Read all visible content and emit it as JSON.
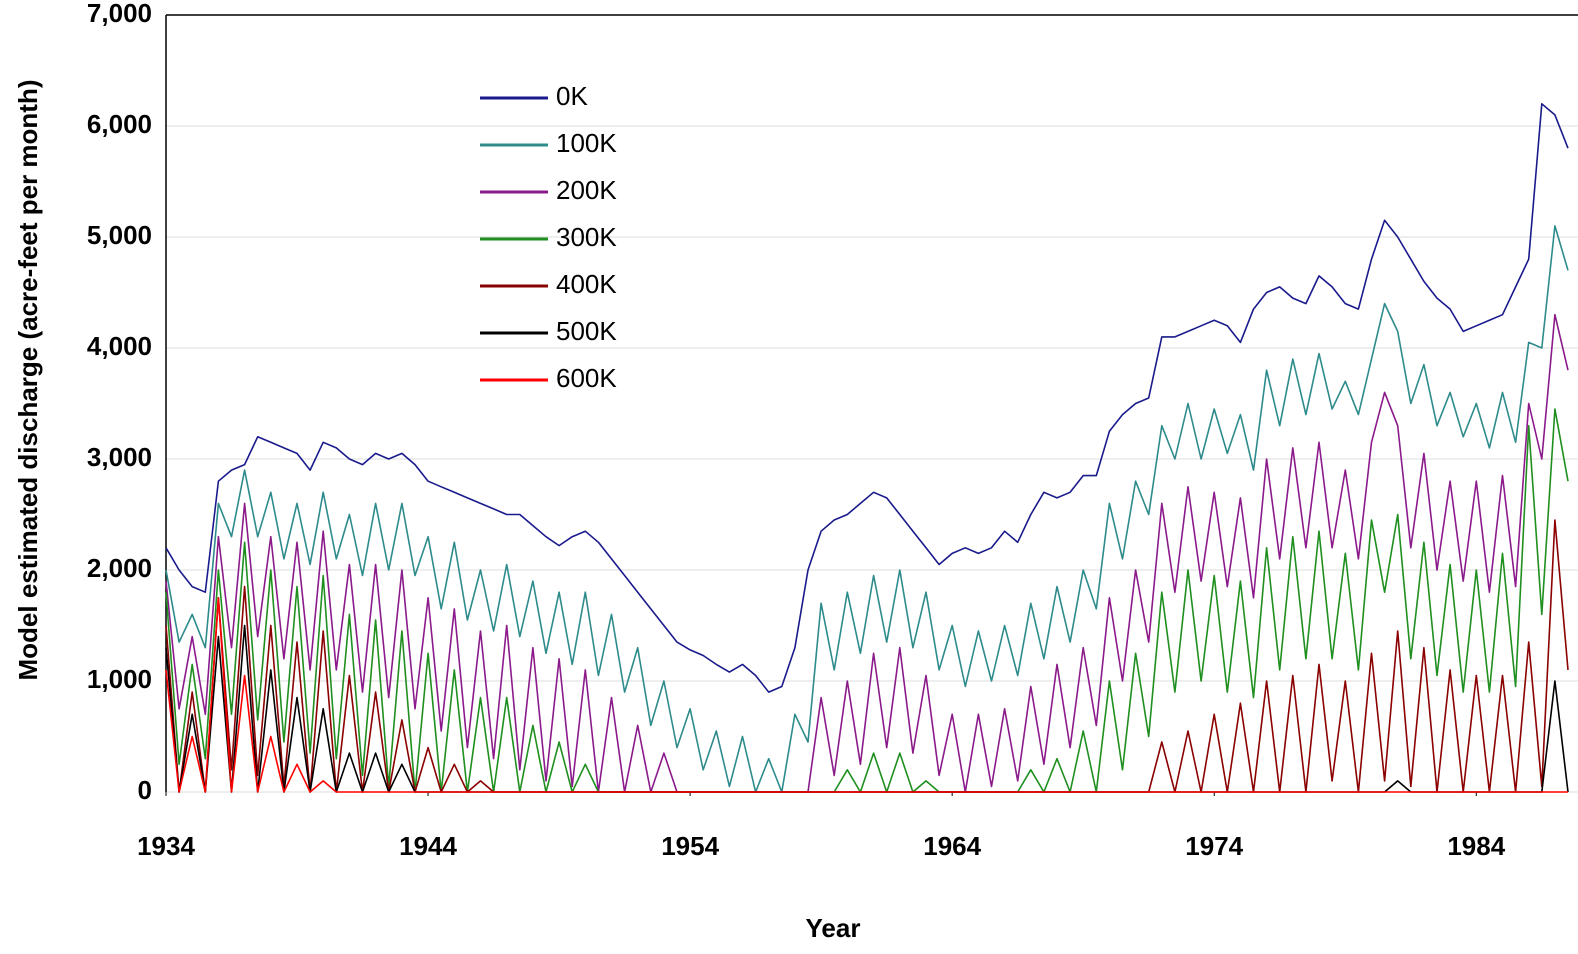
{
  "chart_data": {
    "type": "line",
    "xlabel": "Year",
    "ylabel": "Model estimated discharge (acre-feet per month)",
    "x": [
      1934,
      1934.5,
      1935,
      1935.5,
      1936,
      1936.5,
      1937,
      1937.5,
      1938,
      1938.5,
      1939,
      1939.5,
      1940,
      1940.5,
      1941,
      1941.5,
      1942,
      1942.5,
      1943,
      1943.5,
      1944,
      1944.5,
      1945,
      1945.5,
      1946,
      1946.5,
      1947,
      1947.5,
      1948,
      1948.5,
      1949,
      1949.5,
      1950,
      1950.5,
      1951,
      1951.5,
      1952,
      1952.5,
      1953,
      1953.5,
      1954,
      1954.5,
      1955,
      1955.5,
      1956,
      1956.5,
      1957,
      1957.5,
      1958,
      1958.5,
      1959,
      1959.5,
      1960,
      1960.5,
      1961,
      1961.5,
      1962,
      1962.5,
      1963,
      1963.5,
      1964,
      1964.5,
      1965,
      1965.5,
      1966,
      1966.5,
      1967,
      1967.5,
      1968,
      1968.5,
      1969,
      1969.5,
      1970,
      1970.5,
      1971,
      1971.5,
      1972,
      1972.5,
      1973,
      1973.5,
      1974,
      1974.5,
      1975,
      1975.5,
      1976,
      1976.5,
      1977,
      1977.5,
      1978,
      1978.5,
      1979,
      1979.5,
      1980,
      1980.5,
      1981,
      1981.5,
      1982,
      1982.5,
      1983,
      1983.5,
      1984,
      1984.5,
      1985,
      1985.5,
      1986,
      1986.5,
      1987,
      1987.5
    ],
    "series": [
      {
        "name": "0K",
        "color": "#1a1a8c",
        "values": [
          2200,
          2000,
          1850,
          1800,
          2800,
          2900,
          2950,
          3200,
          3150,
          3100,
          3050,
          2900,
          3150,
          3100,
          3000,
          2950,
          3050,
          3000,
          3050,
          2950,
          2800,
          2750,
          2700,
          2650,
          2600,
          2550,
          2500,
          2500,
          2400,
          2300,
          2220,
          2300,
          2350,
          2250,
          2100,
          1950,
          1800,
          1650,
          1500,
          1350,
          1280,
          1230,
          1150,
          1080,
          1150,
          1050,
          900,
          950,
          1300,
          2000,
          2350,
          2450,
          2500,
          2600,
          2700,
          2650,
          2500,
          2350,
          2200,
          2050,
          2150,
          2200,
          2150,
          2200,
          2350,
          2250,
          2500,
          2700,
          2650,
          2700,
          2850,
          2850,
          3250,
          3400,
          3500,
          3550,
          4100,
          4100,
          4150,
          4200,
          4250,
          4200,
          4050,
          4350,
          4500,
          4550,
          4450,
          4400,
          4650,
          4550,
          4400,
          4350,
          4800,
          5150,
          5000,
          4800,
          4600,
          4450,
          4350,
          4150,
          4200,
          4250,
          4300,
          4550,
          4800,
          6200,
          6100,
          5800
        ]
      },
      {
        "name": "100K",
        "color": "#2e8b8b",
        "values": [
          2000,
          1350,
          1600,
          1300,
          2600,
          2300,
          2900,
          2300,
          2700,
          2100,
          2600,
          2050,
          2700,
          2100,
          2500,
          1950,
          2600,
          2000,
          2600,
          1950,
          2300,
          1650,
          2250,
          1550,
          2000,
          1450,
          2050,
          1400,
          1900,
          1250,
          1800,
          1150,
          1800,
          1050,
          1600,
          900,
          1300,
          600,
          1000,
          400,
          750,
          200,
          550,
          50,
          500,
          0,
          300,
          0,
          700,
          450,
          1700,
          1100,
          1800,
          1250,
          1950,
          1350,
          2000,
          1300,
          1800,
          1100,
          1500,
          950,
          1450,
          1000,
          1500,
          1050,
          1700,
          1200,
          1850,
          1350,
          2000,
          1650,
          2600,
          2100,
          2800,
          2500,
          3300,
          3000,
          3500,
          3000,
          3450,
          3050,
          3400,
          2900,
          3800,
          3300,
          3900,
          3400,
          3950,
          3450,
          3700,
          3400,
          3900,
          4400,
          4150,
          3500,
          3850,
          3300,
          3600,
          3200,
          3500,
          3100,
          3600,
          3150,
          4050,
          4000,
          5100,
          4700
        ]
      },
      {
        "name": "200K",
        "color": "#8b1a8b",
        "values": [
          1900,
          750,
          1400,
          700,
          2300,
          1300,
          2600,
          1400,
          2300,
          1200,
          2250,
          1100,
          2350,
          1100,
          2050,
          900,
          2050,
          850,
          2000,
          750,
          1750,
          550,
          1650,
          400,
          1450,
          300,
          1500,
          200,
          1300,
          100,
          1200,
          50,
          1100,
          0,
          850,
          0,
          600,
          0,
          350,
          0,
          0,
          0,
          0,
          0,
          0,
          0,
          0,
          0,
          0,
          0,
          850,
          150,
          1000,
          250,
          1250,
          400,
          1300,
          350,
          1050,
          150,
          700,
          0,
          700,
          50,
          750,
          100,
          950,
          250,
          1150,
          400,
          1300,
          600,
          1750,
          1000,
          2000,
          1350,
          2600,
          1800,
          2750,
          1900,
          2700,
          1850,
          2650,
          1750,
          3000,
          2100,
          3100,
          2200,
          3150,
          2200,
          2900,
          2100,
          3150,
          3600,
          3300,
          2200,
          3050,
          2000,
          2800,
          1900,
          2800,
          1800,
          2850,
          1850,
          3500,
          3000,
          4300,
          3800
        ]
      },
      {
        "name": "300K",
        "color": "#1f8f1f",
        "values": [
          1800,
          250,
          1150,
          300,
          2000,
          700,
          2250,
          650,
          2000,
          450,
          1850,
          350,
          1950,
          300,
          1600,
          150,
          1550,
          50,
          1450,
          0,
          1250,
          0,
          1100,
          0,
          850,
          0,
          850,
          0,
          600,
          0,
          450,
          0,
          250,
          0,
          0,
          0,
          0,
          0,
          0,
          0,
          0,
          0,
          0,
          0,
          0,
          0,
          0,
          0,
          0,
          0,
          0,
          0,
          200,
          0,
          350,
          0,
          350,
          0,
          100,
          0,
          0,
          0,
          0,
          0,
          0,
          0,
          200,
          0,
          300,
          0,
          550,
          0,
          1000,
          200,
          1250,
          500,
          1800,
          900,
          2000,
          1000,
          1950,
          900,
          1900,
          850,
          2200,
          1100,
          2300,
          1200,
          2350,
          1200,
          2150,
          1100,
          2450,
          1800,
          2500,
          1200,
          2250,
          1050,
          2050,
          900,
          2000,
          900,
          2150,
          950,
          3300,
          1600,
          3450,
          2800
        ]
      },
      {
        "name": "400K",
        "color": "#8b0000",
        "values": [
          1500,
          0,
          900,
          0,
          1750,
          200,
          1850,
          150,
          1500,
          50,
          1350,
          0,
          1450,
          0,
          1050,
          0,
          900,
          0,
          650,
          0,
          400,
          0,
          250,
          0,
          100,
          0,
          0,
          0,
          0,
          0,
          0,
          0,
          0,
          0,
          0,
          0,
          0,
          0,
          0,
          0,
          0,
          0,
          0,
          0,
          0,
          0,
          0,
          0,
          0,
          0,
          0,
          0,
          0,
          0,
          0,
          0,
          0,
          0,
          0,
          0,
          0,
          0,
          0,
          0,
          0,
          0,
          0,
          0,
          0,
          0,
          0,
          0,
          0,
          0,
          0,
          0,
          450,
          0,
          550,
          0,
          700,
          0,
          800,
          0,
          1000,
          0,
          1050,
          0,
          1150,
          100,
          1000,
          0,
          1250,
          100,
          1450,
          50,
          1300,
          0,
          1100,
          0,
          1050,
          0,
          1050,
          0,
          1350,
          50,
          2450,
          1100
        ]
      },
      {
        "name": "500K",
        "color": "#000000",
        "values": [
          1300,
          0,
          700,
          0,
          1400,
          0,
          1500,
          0,
          1100,
          0,
          850,
          0,
          750,
          0,
          350,
          0,
          350,
          0,
          250,
          0,
          0,
          0,
          0,
          0,
          0,
          0,
          0,
          0,
          0,
          0,
          0,
          0,
          0,
          0,
          0,
          0,
          0,
          0,
          0,
          0,
          0,
          0,
          0,
          0,
          0,
          0,
          0,
          0,
          0,
          0,
          0,
          0,
          0,
          0,
          0,
          0,
          0,
          0,
          0,
          0,
          0,
          0,
          0,
          0,
          0,
          0,
          0,
          0,
          0,
          0,
          0,
          0,
          0,
          0,
          0,
          0,
          0,
          0,
          0,
          0,
          0,
          0,
          0,
          0,
          0,
          0,
          0,
          0,
          0,
          0,
          0,
          0,
          0,
          0,
          100,
          0,
          0,
          0,
          0,
          0,
          0,
          0,
          0,
          0,
          0,
          0,
          1000,
          0
        ]
      },
      {
        "name": "600K",
        "color": "#ff0000",
        "values": [
          1100,
          0,
          500,
          0,
          1750,
          0,
          1050,
          0,
          500,
          0,
          250,
          0,
          100,
          0,
          0,
          0,
          0,
          0,
          0,
          0,
          0,
          0,
          0,
          0,
          0,
          0,
          0,
          0,
          0,
          0,
          0,
          0,
          0,
          0,
          0,
          0,
          0,
          0,
          0,
          0,
          0,
          0,
          0,
          0,
          0,
          0,
          0,
          0,
          0,
          0,
          0,
          0,
          0,
          0,
          0,
          0,
          0,
          0,
          0,
          0,
          0,
          0,
          0,
          0,
          0,
          0,
          0,
          0,
          0,
          0,
          0,
          0,
          0,
          0,
          0,
          0,
          0,
          0,
          0,
          0,
          0,
          0,
          0,
          0,
          0,
          0,
          0,
          0,
          0,
          0,
          0,
          0,
          0,
          0,
          0,
          0,
          0,
          0,
          0,
          0,
          0,
          0,
          0,
          0,
          0,
          0,
          0,
          0
        ]
      }
    ],
    "xlim": [
      1934,
      1987.5
    ],
    "xticks": [
      1934,
      1944,
      1954,
      1964,
      1974,
      1984
    ],
    "ylim": [
      0,
      7000
    ],
    "yticks": [
      0,
      {
        "value": 1000,
        "label": "1,000"
      },
      {
        "value": 2000,
        "label": "2,000"
      },
      {
        "value": 3000,
        "label": "3,000"
      },
      {
        "value": 4000,
        "label": "4,000"
      },
      {
        "value": 5000,
        "label": "5,000"
      },
      {
        "value": 6000,
        "label": "6,000"
      },
      {
        "value": 7000,
        "label": "7,000"
      }
    ],
    "grid": true,
    "legend": "upper left"
  }
}
